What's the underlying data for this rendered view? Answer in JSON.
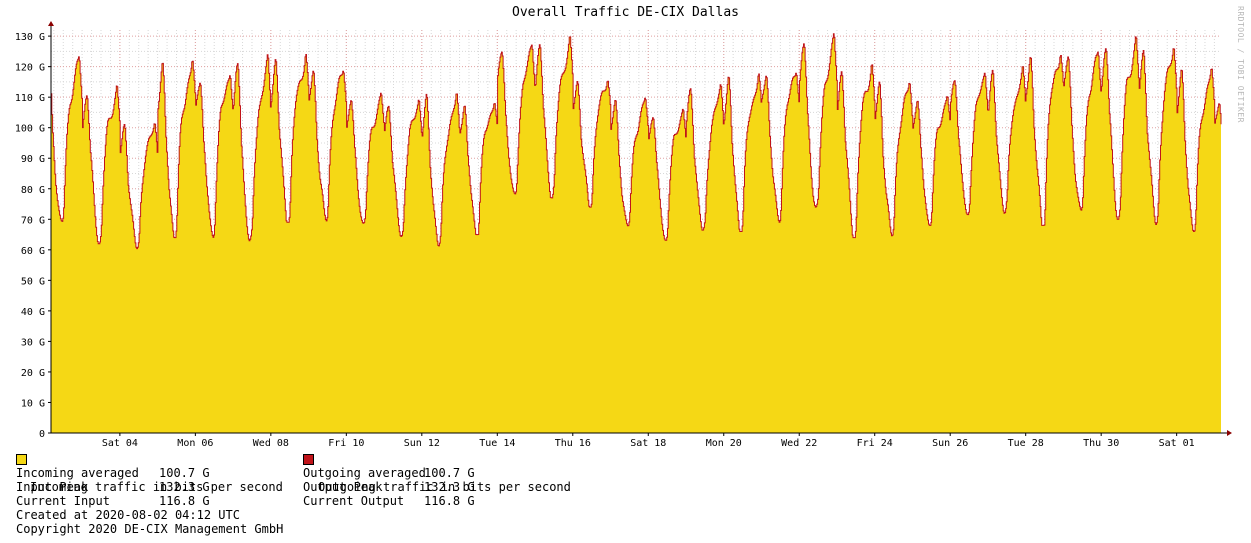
{
  "chart_data": {
    "type": "area",
    "title": "Overall Traffic DE-CIX Dallas",
    "watermark": "RRDTOOL / TOBI OETIKER",
    "y_unit": "bits per second",
    "ylim": [
      0,
      132000000000
    ],
    "y_ticks": [
      {
        "value": 0,
        "label": "0"
      },
      {
        "value": 10000000000,
        "label": "10 G"
      },
      {
        "value": 20000000000,
        "label": "20 G"
      },
      {
        "value": 30000000000,
        "label": "30 G"
      },
      {
        "value": 40000000000,
        "label": "40 G"
      },
      {
        "value": 50000000000,
        "label": "50 G"
      },
      {
        "value": 60000000000,
        "label": "60 G"
      },
      {
        "value": 70000000000,
        "label": "70 G"
      },
      {
        "value": 80000000000,
        "label": "80 G"
      },
      {
        "value": 90000000000,
        "label": "90 G"
      },
      {
        "value": 100000000000,
        "label": "100 G"
      },
      {
        "value": 110000000000,
        "label": "110 G"
      },
      {
        "value": 120000000000,
        "label": "120 G"
      },
      {
        "value": 130000000000,
        "label": "130 G"
      }
    ],
    "x_range": [
      "2020-07-02T04:12",
      "2020-08-02T04:12"
    ],
    "x_ticks": [
      {
        "date": "2020-07-04",
        "label": "Sat 04"
      },
      {
        "date": "2020-07-06",
        "label": "Mon 06"
      },
      {
        "date": "2020-07-08",
        "label": "Wed 08"
      },
      {
        "date": "2020-07-10",
        "label": "Fri 10"
      },
      {
        "date": "2020-07-12",
        "label": "Sun 12"
      },
      {
        "date": "2020-07-14",
        "label": "Tue 14"
      },
      {
        "date": "2020-07-16",
        "label": "Thu 16"
      },
      {
        "date": "2020-07-18",
        "label": "Sat 18"
      },
      {
        "date": "2020-07-20",
        "label": "Mon 20"
      },
      {
        "date": "2020-07-22",
        "label": "Wed 22"
      },
      {
        "date": "2020-07-24",
        "label": "Fri 24"
      },
      {
        "date": "2020-07-26",
        "label": "Sun 26"
      },
      {
        "date": "2020-07-28",
        "label": "Tue 28"
      },
      {
        "date": "2020-07-30",
        "label": "Thu 30"
      },
      {
        "date": "2020-08-01",
        "label": "Sat 01"
      }
    ],
    "grid": true,
    "series": [
      {
        "name": "Incoming traffic in bits per second",
        "color": "#f5d815",
        "style": "area"
      },
      {
        "name": "Outgoing traffic in bits per second",
        "color": "#c0141a",
        "style": "line"
      }
    ],
    "daily_profile": [
      {
        "date": "2020-07-02",
        "min": 67,
        "max": 126
      },
      {
        "date": "2020-07-03",
        "min": 62,
        "max": 116
      },
      {
        "date": "2020-07-04",
        "min": 60,
        "max": 104
      },
      {
        "date": "2020-07-05",
        "min": 64,
        "max": 125
      },
      {
        "date": "2020-07-06",
        "min": 64,
        "max": 122
      },
      {
        "date": "2020-07-07",
        "min": 61,
        "max": 125
      },
      {
        "date": "2020-07-08",
        "min": 69,
        "max": 127
      },
      {
        "date": "2020-07-09",
        "min": 69,
        "max": 123
      },
      {
        "date": "2020-07-10",
        "min": 68,
        "max": 113
      },
      {
        "date": "2020-07-11",
        "min": 64,
        "max": 112
      },
      {
        "date": "2020-07-12",
        "min": 61,
        "max": 113
      },
      {
        "date": "2020-07-13",
        "min": 65,
        "max": 112
      },
      {
        "date": "2020-07-14",
        "min": 76,
        "max": 130
      },
      {
        "date": "2020-07-15",
        "min": 77,
        "max": 131
      },
      {
        "date": "2020-07-16",
        "min": 74,
        "max": 119
      },
      {
        "date": "2020-07-17",
        "min": 67,
        "max": 112
      },
      {
        "date": "2020-07-18",
        "min": 63,
        "max": 109
      },
      {
        "date": "2020-07-19",
        "min": 65,
        "max": 116
      },
      {
        "date": "2020-07-20",
        "min": 66,
        "max": 120
      },
      {
        "date": "2020-07-21",
        "min": 69,
        "max": 123
      },
      {
        "date": "2020-07-22",
        "min": 72,
        "max": 132
      },
      {
        "date": "2020-07-23",
        "min": 64,
        "max": 124
      },
      {
        "date": "2020-07-24",
        "min": 64,
        "max": 118
      },
      {
        "date": "2020-07-25",
        "min": 68,
        "max": 113
      },
      {
        "date": "2020-07-26",
        "min": 70,
        "max": 121
      },
      {
        "date": "2020-07-27",
        "min": 72,
        "max": 121
      },
      {
        "date": "2020-07-28",
        "min": 68,
        "max": 129
      },
      {
        "date": "2020-07-29",
        "min": 71,
        "max": 128
      },
      {
        "date": "2020-07-30",
        "min": 70,
        "max": 132
      },
      {
        "date": "2020-07-31",
        "min": 68,
        "max": 130
      },
      {
        "date": "2020-08-01",
        "min": 66,
        "max": 122
      },
      {
        "date": "2020-08-02",
        "min": 66,
        "max": 114
      }
    ],
    "daily_profile_unit": "Gbit/s"
  },
  "legend": {
    "incoming_label": "Incoming traffic in bits per second",
    "outgoing_label": "Outgoing traffic in bits per second",
    "incoming_color": "#f5d815",
    "outgoing_color": "#c0141a",
    "stats": {
      "incoming_avg_label": "Incoming averaged",
      "incoming_avg_value": "100.7 G",
      "input_peak_label": "Input Peak",
      "input_peak_value": "132.3 G",
      "current_input_label": "Current Input",
      "current_input_value": "116.8 G",
      "outgoing_avg_label": "Outgoing averaged",
      "outgoing_avg_value": "100.7 G",
      "output_peak_label": "Output Peak",
      "output_peak_value": "132.3 G",
      "current_output_label": "Current Output",
      "current_output_value": "116.8 G"
    },
    "created_at": "Created at 2020-08-02 04:12 UTC",
    "copyright": "Copyright 2020 DE-CIX Management GmbH"
  }
}
